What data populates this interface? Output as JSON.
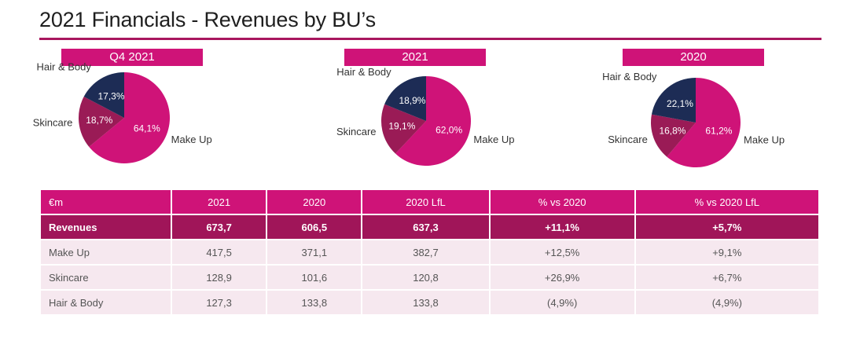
{
  "title": "2021 Financials - Revenues by BU’s",
  "colors": {
    "make_up": "#cf1378",
    "skincare": "#9a1b56",
    "hair_body": "#1d2c55",
    "header": "#cf1378",
    "revenues_row": "#a01559"
  },
  "chart_data": [
    {
      "type": "pie",
      "title": "Q4 2021",
      "slices": [
        {
          "label": "Make Up",
          "value": 64.1,
          "value_label": "64,1%"
        },
        {
          "label": "Skincare",
          "value": 18.7,
          "value_label": "18,7%"
        },
        {
          "label": "Hair & Body",
          "value": 17.3,
          "value_label": "17,3%"
        }
      ]
    },
    {
      "type": "pie",
      "title": "2021",
      "slices": [
        {
          "label": "Make Up",
          "value": 62.0,
          "value_label": "62,0%"
        },
        {
          "label": "Skincare",
          "value": 19.1,
          "value_label": "19,1%"
        },
        {
          "label": "Hair & Body",
          "value": 18.9,
          "value_label": "18,9%"
        }
      ]
    },
    {
      "type": "pie",
      "title": "2020",
      "slices": [
        {
          "label": "Make Up",
          "value": 61.2,
          "value_label": "61,2%"
        },
        {
          "label": "Skincare",
          "value": 16.8,
          "value_label": "16,8%"
        },
        {
          "label": "Hair & Body",
          "value": 22.1,
          "value_label": "22,1%"
        }
      ]
    },
    {
      "type": "table",
      "columns": [
        "€m",
        "2021",
        "2020",
        "2020  LfL",
        "% vs 2020",
        "% vs 2020 LfL"
      ],
      "rows": [
        [
          "Revenues",
          "673,7",
          "606,5",
          "637,3",
          "+11,1%",
          "+5,7%"
        ],
        [
          "Make Up",
          "417,5",
          "371,1",
          "382,7",
          "+12,5%",
          "+9,1%"
        ],
        [
          "Skincare",
          "128,9",
          "101,6",
          "120,8",
          "+26,9%",
          "+6,7%"
        ],
        [
          "Hair & Body",
          "127,3",
          "133,8",
          "133,8",
          "(4,9%)",
          "(4,9%)"
        ]
      ]
    }
  ]
}
